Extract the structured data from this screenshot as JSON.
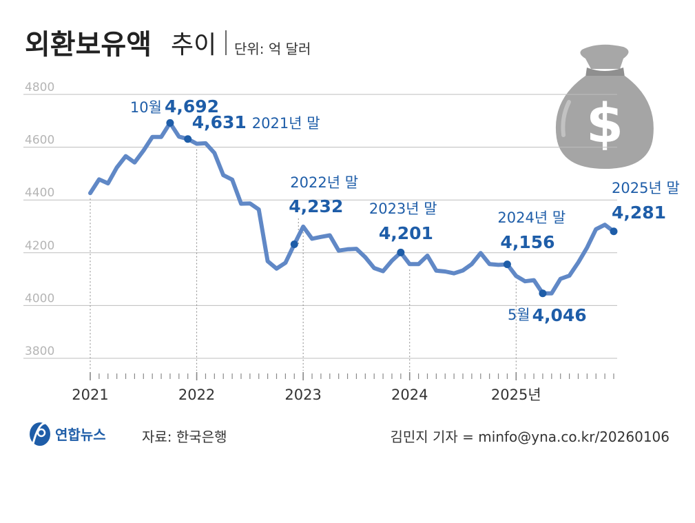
{
  "header": {
    "title": "외환보유액",
    "subtitle": "추이",
    "unit": "단위: 억 달러"
  },
  "footer": {
    "brand": "연합뉴스",
    "source": "자료: 한국은행",
    "credit": "김민지 기자 = minfo@yna.co.kr/20260106"
  },
  "colors": {
    "line": "#6088c6",
    "accent": "#1e5da8",
    "grid": "#bdbdbd",
    "bag": "#9e9e9e"
  },
  "icons": [
    "money-bag-icon",
    "yonhap-logo-icon"
  ],
  "chart_data": {
    "type": "line",
    "title": "외환보유액 추이",
    "unit": "단위: 억 달러",
    "ylim": [
      3800,
      4800
    ],
    "yticks": [
      3800,
      4000,
      4200,
      4400,
      4600,
      4800
    ],
    "xtick_labels": [
      "2021",
      "2022",
      "2023",
      "2024",
      "2025년"
    ],
    "grid": true,
    "series": [
      {
        "values": [
          4426,
          4478,
          4463,
          4523,
          4566,
          4542,
          4587,
          4639,
          4639,
          4692,
          4640,
          4631,
          4613,
          4615,
          4578,
          4494,
          4477,
          4386,
          4387,
          4364,
          4168,
          4140,
          4162,
          4232,
          4299,
          4253,
          4260,
          4266,
          4208,
          4213,
          4215,
          4183,
          4142,
          4130,
          4170,
          4201,
          4157,
          4157,
          4189,
          4132,
          4129,
          4122,
          4133,
          4157,
          4199,
          4157,
          4154,
          4156,
          4112,
          4092,
          4096,
          4046,
          4046,
          4101,
          4113,
          4163,
          4220,
          4289,
          4306,
          4281
        ]
      }
    ],
    "annotations": [
      {
        "label": "10월",
        "value": "4,692"
      },
      {
        "value": "4,631",
        "label": "2021년 말"
      },
      {
        "label": "2022년 말",
        "value": "4,232"
      },
      {
        "label": "2023년 말",
        "value": "4,201"
      },
      {
        "label": "2024년 말",
        "value": "4,156"
      },
      {
        "label": "5월",
        "value": "4,046"
      },
      {
        "label": "2025년 말",
        "value": "4,281"
      }
    ]
  }
}
